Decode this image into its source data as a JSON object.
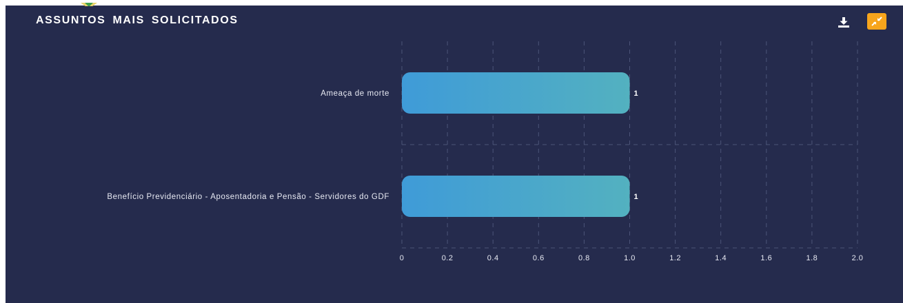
{
  "header": {
    "title": "ASSUNTOS MAIS SOLICITADOS",
    "download_icon": "download-icon",
    "collapse_icon": "collapse-arrows-icon"
  },
  "colors": {
    "panel_bg": "#252b4d",
    "bar_gradient_start": "#3f9bd8",
    "bar_gradient_end": "#53b1c0",
    "collapse_button": "#f7a51c"
  },
  "chart_data": {
    "type": "bar",
    "orientation": "horizontal",
    "title": "ASSUNTOS MAIS SOLICITADOS",
    "categories": [
      "Ameaça de morte",
      "Benefício Previdenciário - Aposentadoria e Pensão - Servidores do GDF"
    ],
    "values": [
      1,
      1
    ],
    "data_labels": [
      "1",
      "1"
    ],
    "xlim": [
      0,
      2.0
    ],
    "x_ticks": [
      "0",
      "0.2",
      "0.4",
      "0.6",
      "0.8",
      "1.0",
      "1.2",
      "1.4",
      "1.6",
      "1.8",
      "2.0"
    ],
    "grid": true,
    "grid_style": "dashed",
    "legend": "none"
  }
}
